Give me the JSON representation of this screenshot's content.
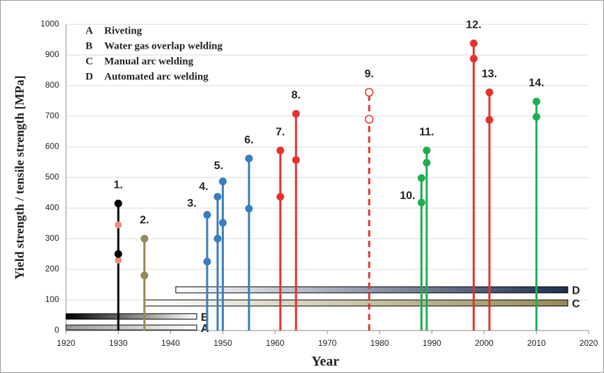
{
  "chart_data": {
    "type": "stem",
    "xlabel": "Year",
    "ylabel": "Yield strength / tensile strength [MPa]",
    "xlim": [
      1920,
      2020
    ],
    "ylim": [
      0,
      1000
    ],
    "xticks": [
      1920,
      1930,
      1940,
      1950,
      1960,
      1970,
      1980,
      1990,
      2000,
      2010,
      2020
    ],
    "yticks": [
      0,
      100,
      200,
      300,
      400,
      500,
      600,
      700,
      800,
      900,
      1000
    ],
    "grid": true,
    "stems": [
      {
        "label": "1.",
        "x": 1930,
        "color": "#000000",
        "values": [
          250,
          415
        ],
        "extra_values": [
          230,
          345
        ],
        "extra_color": "#e8907a"
      },
      {
        "label": "2.",
        "x": 1935,
        "color": "#958a56",
        "values": [
          180,
          300
        ]
      },
      {
        "label": "3.",
        "x": 1947,
        "color": "#3a7cc0",
        "values": [
          225,
          378
        ]
      },
      {
        "label": "4.",
        "x": 1949,
        "color": "#3a7cc0",
        "values": [
          300,
          437
        ]
      },
      {
        "label": "5.",
        "x": 1950,
        "color": "#3a7cc0",
        "values": [
          352,
          487
        ]
      },
      {
        "label": "6.",
        "x": 1955,
        "color": "#3a7cc0",
        "values": [
          398,
          562
        ]
      },
      {
        "label": "7.",
        "x": 1961,
        "color": "#e5322d",
        "values": [
          437,
          588
        ]
      },
      {
        "label": "8.",
        "x": 1964,
        "color": "#e5322d",
        "values": [
          557,
          708
        ]
      },
      {
        "label": "9.",
        "x": 1978,
        "color": "#e5322d",
        "values": [
          690,
          778
        ],
        "dashed": true,
        "hollow": true
      },
      {
        "label": "10.",
        "x": 1988,
        "color": "#1fae4f",
        "values": [
          418,
          498
        ]
      },
      {
        "label": "11.",
        "x": 1989,
        "color": "#1fae4f",
        "values": [
          548,
          588
        ]
      },
      {
        "label": "12.",
        "x": 1998,
        "color": "#e5322d",
        "values": [
          888,
          938
        ]
      },
      {
        "label": "13.",
        "x": 2001,
        "color": "#e5322d",
        "values": [
          688,
          778
        ]
      },
      {
        "label": "14.",
        "x": 2010,
        "color": "#1fae4f",
        "values": [
          698,
          748
        ]
      }
    ],
    "periods": [
      {
        "name": "A",
        "label": "Riveting",
        "start": 1920,
        "end": 1945,
        "bottom": 2,
        "top": 18,
        "colors": [
          "#9a9a9a",
          "#ffffff"
        ]
      },
      {
        "name": "B",
        "label": "Water gas overlap welding",
        "start": 1920,
        "end": 1945,
        "bottom": 37,
        "top": 55,
        "colors": [
          "#000000",
          "#ffffff"
        ]
      },
      {
        "name": "C",
        "label": "Manual arc welding",
        "start": 1935,
        "end": 2016,
        "bottom": 80,
        "top": 100,
        "colors": [
          "#ffffff",
          "#958a56"
        ]
      },
      {
        "name": "D",
        "label": "Automated arc welding",
        "start": 1941,
        "end": 2016,
        "bottom": 123,
        "top": 143,
        "colors": [
          "#ffffff",
          "#1e2f52"
        ]
      }
    ]
  }
}
